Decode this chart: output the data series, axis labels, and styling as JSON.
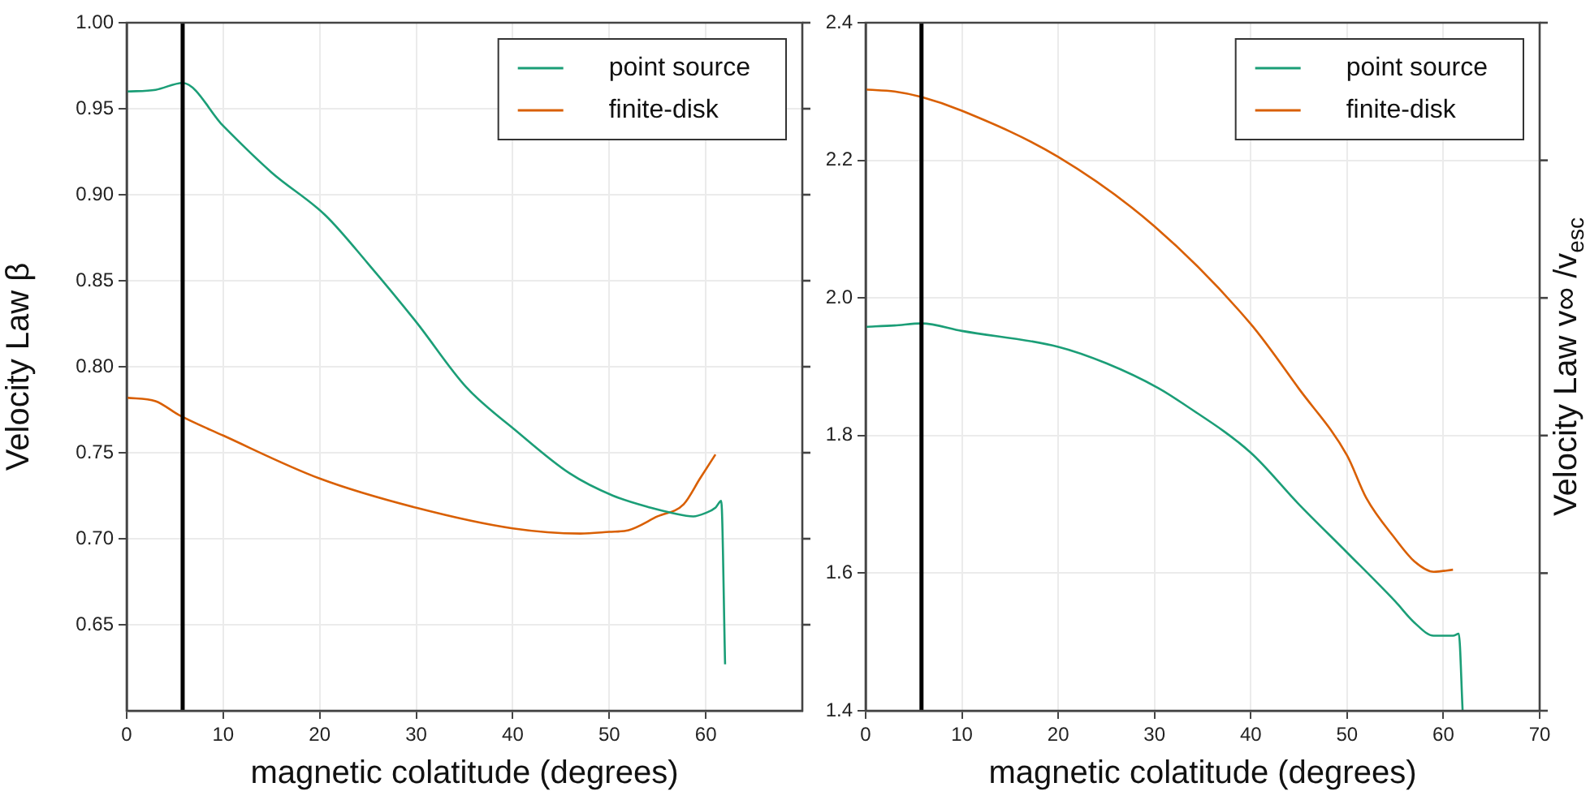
{
  "chart_data": [
    {
      "type": "line",
      "xlabel": "magnetic colatitude (degrees)",
      "ylabel": "Velocity Law β",
      "xlim": [
        0,
        70
      ],
      "xticks": [
        0,
        10,
        20,
        30,
        40,
        50,
        60
      ],
      "ylim": [
        0.6,
        1.0
      ],
      "yticks": [
        0.65,
        {
          "value": 0.7,
          "label": "0.70"
        },
        0.75,
        {
          "value": 0.8,
          "label": "0.80"
        },
        0.85,
        {
          "value": 0.9,
          "label": "0.90"
        },
        0.95,
        {
          "value": 1.0,
          "label": "1.00"
        }
      ],
      "grid": true,
      "legend": "top right",
      "marker": "none",
      "line_style": "solid",
      "ref_lines": [
        {
          "axis": "x",
          "value": 5.8,
          "color": "#000000"
        }
      ],
      "series": [
        {
          "name": "point source",
          "color": "#1b9e77",
          "x": [
            0,
            3,
            5.8,
            10,
            15,
            20.6,
            25,
            30,
            35.2,
            40.3,
            45.9,
            50.4,
            54.3,
            56.5,
            58.7,
            60,
            61,
            61.6,
            62.0
          ],
          "values": [
            0.96,
            0.961,
            0.965,
            0.94,
            0.913,
            0.888,
            0.86,
            0.826,
            0.788,
            0.763,
            0.738,
            0.725,
            0.718,
            0.715,
            0.713,
            0.715,
            0.718,
            0.722,
            0.627
          ]
        },
        {
          "name": "finite-disk",
          "color": "#d95f02",
          "x": [
            0,
            3,
            5.4,
            10,
            20,
            30,
            40,
            47,
            50,
            52,
            55,
            57.7,
            59.4,
            61.0
          ],
          "values": [
            0.782,
            0.78,
            0.772,
            0.76,
            0.735,
            0.718,
            0.706,
            0.703,
            0.704,
            0.705,
            0.713,
            0.72,
            0.735,
            0.749
          ]
        }
      ]
    },
    {
      "type": "line",
      "xlabel": "magnetic colatitude (degrees)",
      "y2label": "Velocity Law v∞ /v$_{esc}$",
      "xlim": [
        0,
        70
      ],
      "xticks": [
        0,
        10,
        20,
        30,
        40,
        50,
        60,
        70
      ],
      "ylim": [
        1.4,
        2.4
      ],
      "yticks": [
        1.4,
        1.6,
        1.8,
        {
          "value": 2.0,
          "label": "2.0"
        },
        2.2,
        2.4
      ],
      "grid": true,
      "legend": "top right",
      "marker": "none",
      "line_style": "solid",
      "ref_lines": [
        {
          "axis": "x",
          "value": 5.8,
          "color": "#000000"
        }
      ],
      "series": [
        {
          "name": "point source",
          "color": "#1b9e77",
          "x": [
            0,
            3,
            5.8,
            10,
            20,
            25,
            30.4,
            33,
            40,
            45,
            50,
            55,
            57,
            59,
            61,
            61.6,
            62.0
          ],
          "values": [
            1.958,
            1.96,
            1.963,
            1.952,
            1.929,
            1.905,
            1.869,
            1.846,
            1.775,
            1.7,
            1.63,
            1.559,
            1.528,
            1.509,
            1.509,
            1.512,
            1.4
          ]
        },
        {
          "name": "finite-disk",
          "color": "#d95f02",
          "x": [
            0,
            3,
            5.8,
            10,
            20,
            30,
            40,
            45,
            50,
            52,
            55,
            57,
            59,
            61
          ],
          "values": [
            2.303,
            2.3,
            2.292,
            2.272,
            2.205,
            2.104,
            1.962,
            1.868,
            1.771,
            1.709,
            1.65,
            1.617,
            1.602,
            1.605
          ]
        }
      ]
    }
  ]
}
